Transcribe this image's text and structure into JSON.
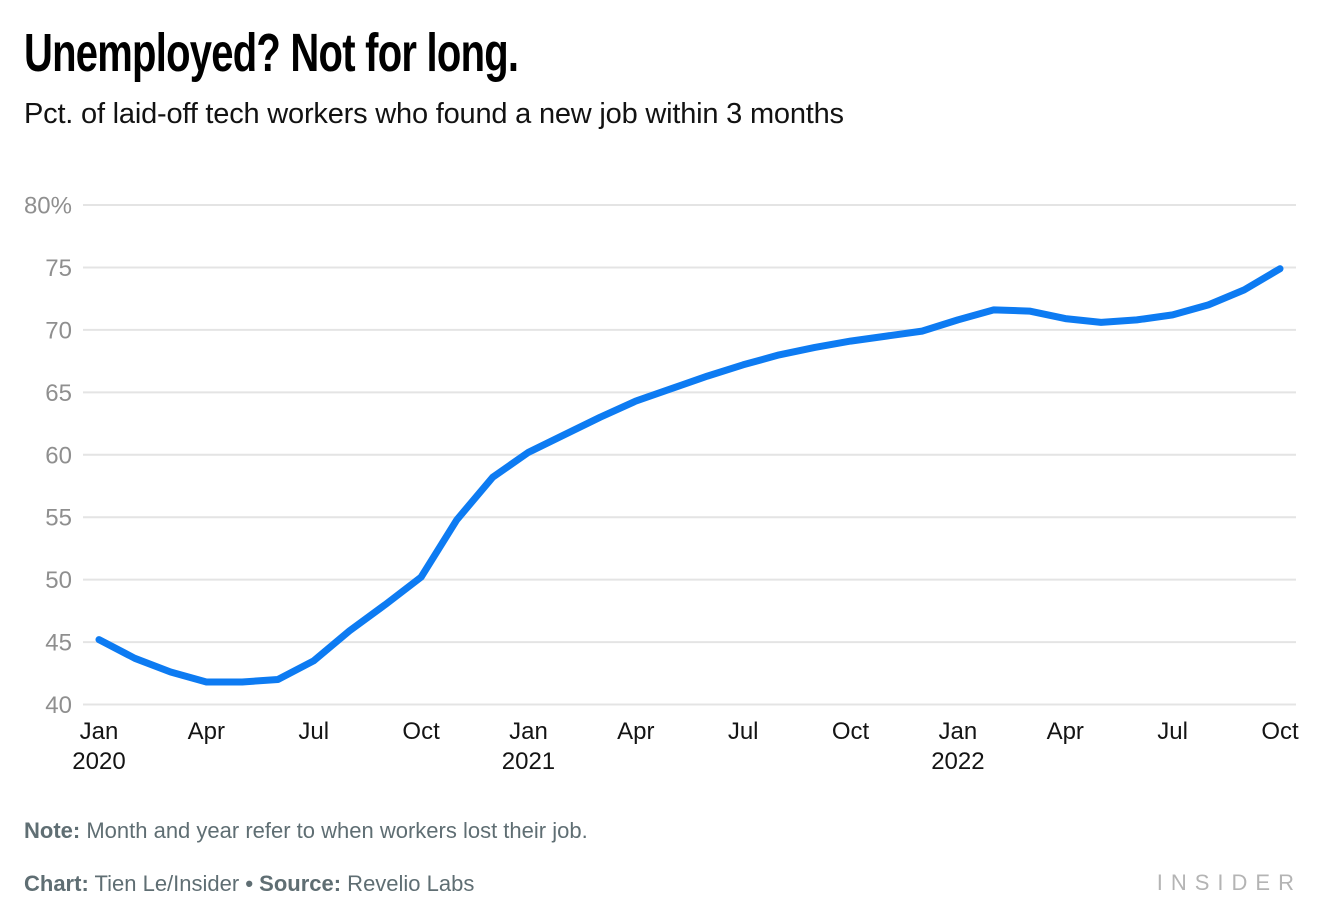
{
  "header": {
    "title": "Unemployed? Not for long.",
    "subtitle": "Pct. of laid-off tech workers who found a new job within 3 months"
  },
  "chart_data": {
    "type": "line",
    "title": "Unemployed? Not for long.",
    "subtitle": "Pct. of laid-off tech workers who found a new job within 3 months",
    "x": [
      "Jan 2020",
      "Feb 2020",
      "Mar 2020",
      "Apr 2020",
      "May 2020",
      "Jun 2020",
      "Jul 2020",
      "Aug 2020",
      "Sep 2020",
      "Oct 2020",
      "Nov 2020",
      "Dec 2020",
      "Jan 2021",
      "Feb 2021",
      "Mar 2021",
      "Apr 2021",
      "May 2021",
      "Jun 2021",
      "Jul 2021",
      "Aug 2021",
      "Sep 2021",
      "Oct 2021",
      "Nov 2021",
      "Dec 2021",
      "Jan 2022",
      "Feb 2022",
      "Mar 2022",
      "Apr 2022",
      "May 2022",
      "Jun 2022",
      "Jul 2022",
      "Aug 2022",
      "Sep 2022",
      "Oct 2022"
    ],
    "values": [
      45.2,
      43.7,
      42.6,
      41.8,
      41.8,
      42.0,
      43.5,
      45.9,
      48.0,
      50.2,
      54.8,
      58.2,
      60.2,
      61.6,
      63.0,
      64.3,
      65.3,
      66.3,
      67.2,
      68.0,
      68.6,
      69.1,
      69.5,
      69.9,
      70.8,
      71.6,
      71.5,
      70.9,
      70.6,
      70.8,
      71.2,
      72.0,
      73.2,
      74.9
    ],
    "ylim": [
      40,
      80
    ],
    "grid": true,
    "legend": "none",
    "line_color": "#0d7bf2",
    "y_axis": {
      "ticks": [
        {
          "value": 80,
          "label": "80%"
        },
        {
          "value": 75,
          "label": "75"
        },
        {
          "value": 70,
          "label": "70"
        },
        {
          "value": 65,
          "label": "65"
        },
        {
          "value": 60,
          "label": "60"
        },
        {
          "value": 55,
          "label": "55"
        },
        {
          "value": 50,
          "label": "50"
        },
        {
          "value": 45,
          "label": "45"
        },
        {
          "value": 40,
          "label": "40"
        }
      ]
    },
    "x_axis": {
      "ticks": [
        {
          "month_index": 0,
          "label": "Jan",
          "year": "2020"
        },
        {
          "month_index": 3,
          "label": "Apr"
        },
        {
          "month_index": 6,
          "label": "Jul"
        },
        {
          "month_index": 9,
          "label": "Oct"
        },
        {
          "month_index": 12,
          "label": "Jan",
          "year": "2021"
        },
        {
          "month_index": 15,
          "label": "Apr"
        },
        {
          "month_index": 18,
          "label": "Jul"
        },
        {
          "month_index": 21,
          "label": "Oct"
        },
        {
          "month_index": 24,
          "label": "Jan",
          "year": "2022"
        },
        {
          "month_index": 27,
          "label": "Apr"
        },
        {
          "month_index": 30,
          "label": "Jul"
        },
        {
          "month_index": 33,
          "label": "Oct"
        }
      ]
    }
  },
  "colors": {
    "line": "#0d7bf2",
    "grid": "#e4e4e4",
    "y_label": "#8f8f8f",
    "x_label": "#141414",
    "footnote": "#5f6e73",
    "logo": "#b4b4b4"
  },
  "footer": {
    "note_label": "Note:",
    "note_text": " Month and year refer to when workers lost their job.",
    "chart_label": "Chart:",
    "chart_credit": " Tien Le/Insider ",
    "separator": "•",
    "source_label": " Source:",
    "source_text": " Revelio Labs"
  },
  "branding": {
    "logo": "INSIDER"
  }
}
